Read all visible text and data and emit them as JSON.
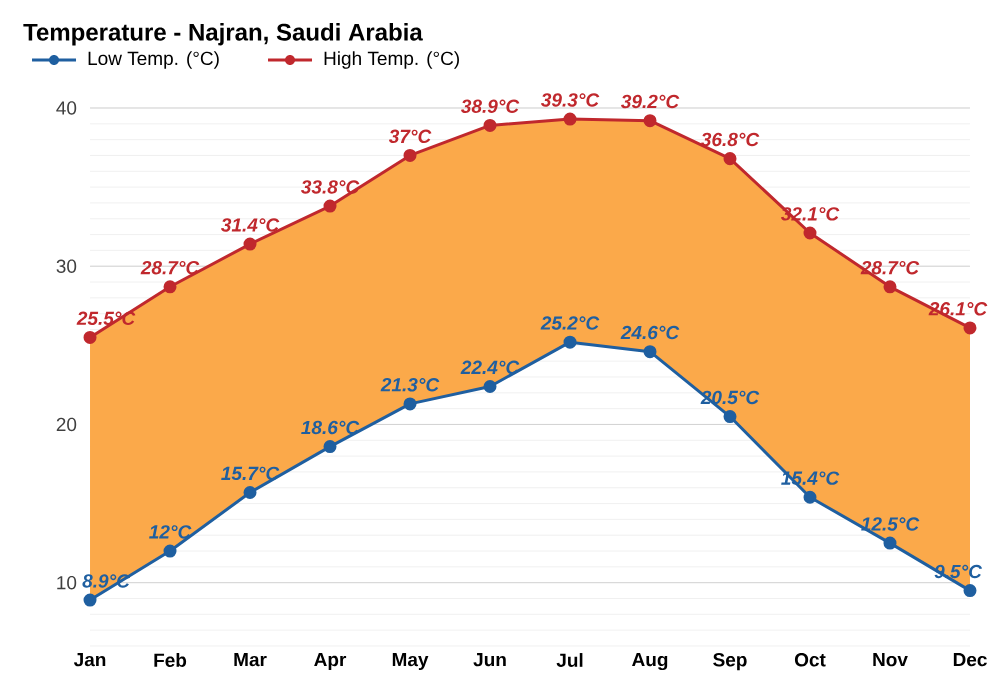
{
  "chart_data": {
    "type": "line",
    "title": "Temperature - Najran, Saudi Arabia",
    "categories": [
      "Jan",
      "Feb",
      "Mar",
      "Apr",
      "May",
      "Jun",
      "Jul",
      "Aug",
      "Sep",
      "Oct",
      "Nov",
      "Dec"
    ],
    "series": [
      {
        "name": "Low Temp. (°C)",
        "color": "#1f5fa0",
        "values": [
          8.9,
          12,
          15.7,
          18.6,
          21.3,
          22.4,
          25.2,
          24.6,
          20.5,
          15.4,
          12.5,
          9.5
        ],
        "value_labels": [
          "8.9°C",
          "12°C",
          "15.7°C",
          "18.6°C",
          "21.3°C",
          "22.4°C",
          "25.2°C",
          "24.6°C",
          "20.5°C",
          "15.4°C",
          "12.5°C",
          "9.5°C"
        ]
      },
      {
        "name": "High Temp. (°C)",
        "color": "#c0282d",
        "values": [
          25.5,
          28.7,
          31.4,
          33.8,
          37,
          38.9,
          39.3,
          39.2,
          36.8,
          32.1,
          28.7,
          26.1
        ],
        "value_labels": [
          "25.5°C",
          "28.7°C",
          "31.4°C",
          "33.8°C",
          "37°C",
          "38.9°C",
          "39.3°C",
          "39.2°C",
          "36.8°C",
          "32.1°C",
          "28.7°C",
          "26.1°C"
        ],
        "lower": [
          8.9,
          12,
          15.7,
          18.6,
          21.3,
          22.4,
          25.2,
          24.6,
          20.5,
          15.4,
          12.5,
          9.5
        ],
        "upper": [
          25.5,
          28.7,
          31.4,
          33.8,
          37,
          38.9,
          39.3,
          39.2,
          36.8,
          32.1,
          28.7,
          26.1
        ]
      }
    ],
    "ylim": [
      6,
      40
    ],
    "yticks": [
      10,
      20,
      30,
      40
    ],
    "grid": "y",
    "legend": "top left",
    "marker": "circle",
    "line_style": "solid"
  }
}
